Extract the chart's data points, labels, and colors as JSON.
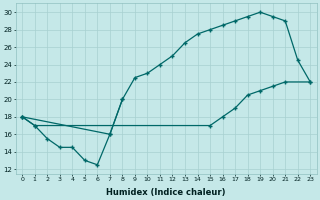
{
  "title": "",
  "xlabel": "Humidex (Indice chaleur)",
  "ylabel": "",
  "bg_color": "#c5e8e8",
  "grid_color": "#a8d0d0",
  "line_color": "#006868",
  "xlim": [
    -0.5,
    23.5
  ],
  "ylim": [
    11.5,
    31.0
  ],
  "xticks": [
    0,
    1,
    2,
    3,
    4,
    5,
    6,
    7,
    8,
    9,
    10,
    11,
    12,
    13,
    14,
    15,
    16,
    17,
    18,
    19,
    20,
    21,
    22,
    23
  ],
  "yticks": [
    12,
    14,
    16,
    18,
    20,
    22,
    24,
    26,
    28,
    30
  ],
  "line1_x": [
    0,
    1,
    2,
    3,
    4,
    5,
    6,
    7,
    8
  ],
  "line1_y": [
    18,
    17,
    15.5,
    14.5,
    14.5,
    13,
    12.5,
    16,
    20
  ],
  "line2_x": [
    0,
    7,
    8,
    9,
    10,
    11,
    12,
    13,
    14,
    15,
    16,
    17,
    18,
    19,
    20,
    21,
    22,
    23
  ],
  "line2_y": [
    18,
    16,
    20,
    22.5,
    23,
    24,
    25,
    26.5,
    27.5,
    28,
    28.5,
    29,
    29.5,
    30,
    29.5,
    29,
    24.5,
    22
  ],
  "line3_x": [
    0,
    1,
    15,
    16,
    17,
    18,
    19,
    20,
    21,
    23
  ],
  "line3_y": [
    18,
    17,
    17,
    18,
    19,
    20.5,
    21,
    21.5,
    22,
    22
  ],
  "dpi": 100,
  "figsize": [
    3.2,
    2.0
  ]
}
